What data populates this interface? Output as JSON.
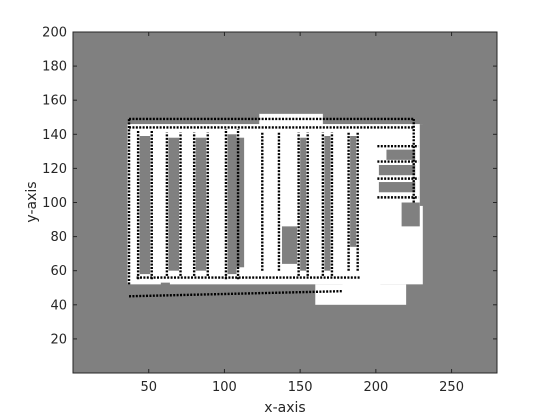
{
  "chart_data": {
    "type": "heatmap",
    "title": "",
    "xlabel": "x-axis",
    "ylabel": "y-axis",
    "xlim": [
      0,
      280
    ],
    "ylim": [
      0,
      200
    ],
    "xticks": [
      50,
      100,
      150,
      200,
      250
    ],
    "yticks": [
      20,
      40,
      60,
      80,
      100,
      120,
      140,
      160,
      180,
      200
    ],
    "grid": false,
    "legend": "none",
    "colors": {
      "unknown": "#808080",
      "free": "#ffffff",
      "occupied": "#000000"
    },
    "free_regions": [
      [
        36,
        52,
        231,
        146
      ],
      [
        160,
        40,
        220,
        52
      ],
      [
        178,
        50,
        203,
        78
      ],
      [
        123,
        145,
        165,
        152
      ]
    ],
    "unknown_regions": [
      [
        44,
        58,
        51,
        139
      ],
      [
        63,
        60,
        70,
        138
      ],
      [
        81,
        60,
        88,
        138
      ],
      [
        102,
        58,
        108,
        140
      ],
      [
        104,
        62,
        113,
        138
      ],
      [
        138,
        64,
        148,
        86
      ],
      [
        150,
        60,
        154,
        138
      ],
      [
        166,
        60,
        170,
        139
      ],
      [
        183,
        74,
        187,
        139
      ],
      [
        202,
        106,
        226,
        112
      ],
      [
        202,
        116,
        226,
        122
      ],
      [
        207,
        125,
        226,
        131
      ],
      [
        58,
        46,
        64,
        53
      ],
      [
        140,
        42,
        150,
        49
      ],
      [
        217,
        86,
        229,
        100
      ],
      [
        229,
        98,
        233,
        146
      ]
    ],
    "walls": [
      [
        [
          37,
          149
        ],
        [
          225,
          149
        ]
      ],
      [
        [
          37,
          45
        ],
        [
          178,
          48
        ]
      ],
      [
        [
          37,
          52
        ],
        [
          37,
          149
        ]
      ],
      [
        [
          225,
          100
        ],
        [
          225,
          149
        ]
      ],
      [
        [
          43,
          55
        ],
        [
          43,
          142
        ]
      ],
      [
        [
          52,
          55
        ],
        [
          52,
          142
        ]
      ],
      [
        [
          62,
          57
        ],
        [
          62,
          141
        ]
      ],
      [
        [
          71,
          57
        ],
        [
          71,
          141
        ]
      ],
      [
        [
          80,
          57
        ],
        [
          80,
          141
        ]
      ],
      [
        [
          89,
          57
        ],
        [
          89,
          141
        ]
      ],
      [
        [
          101,
          55
        ],
        [
          101,
          143
        ]
      ],
      [
        [
          109,
          55
        ],
        [
          109,
          143
        ]
      ],
      [
        [
          125,
          60
        ],
        [
          125,
          141
        ]
      ],
      [
        [
          136,
          60
        ],
        [
          136,
          141
        ]
      ],
      [
        [
          149,
          57
        ],
        [
          149,
          141
        ]
      ],
      [
        [
          155,
          57
        ],
        [
          155,
          141
        ]
      ],
      [
        [
          165,
          57
        ],
        [
          165,
          141
        ]
      ],
      [
        [
          171,
          57
        ],
        [
          171,
          141
        ]
      ],
      [
        [
          182,
          60
        ],
        [
          182,
          141
        ]
      ],
      [
        [
          188,
          60
        ],
        [
          188,
          141
        ]
      ],
      [
        [
          201,
          103
        ],
        [
          228,
          103
        ]
      ],
      [
        [
          201,
          114
        ],
        [
          228,
          114
        ]
      ],
      [
        [
          201,
          124
        ],
        [
          228,
          124
        ]
      ],
      [
        [
          201,
          133
        ],
        [
          228,
          133
        ]
      ],
      [
        [
          37,
          144
        ],
        [
          225,
          144
        ]
      ],
      [
        [
          42,
          56
        ],
        [
          190,
          56
        ]
      ]
    ]
  }
}
